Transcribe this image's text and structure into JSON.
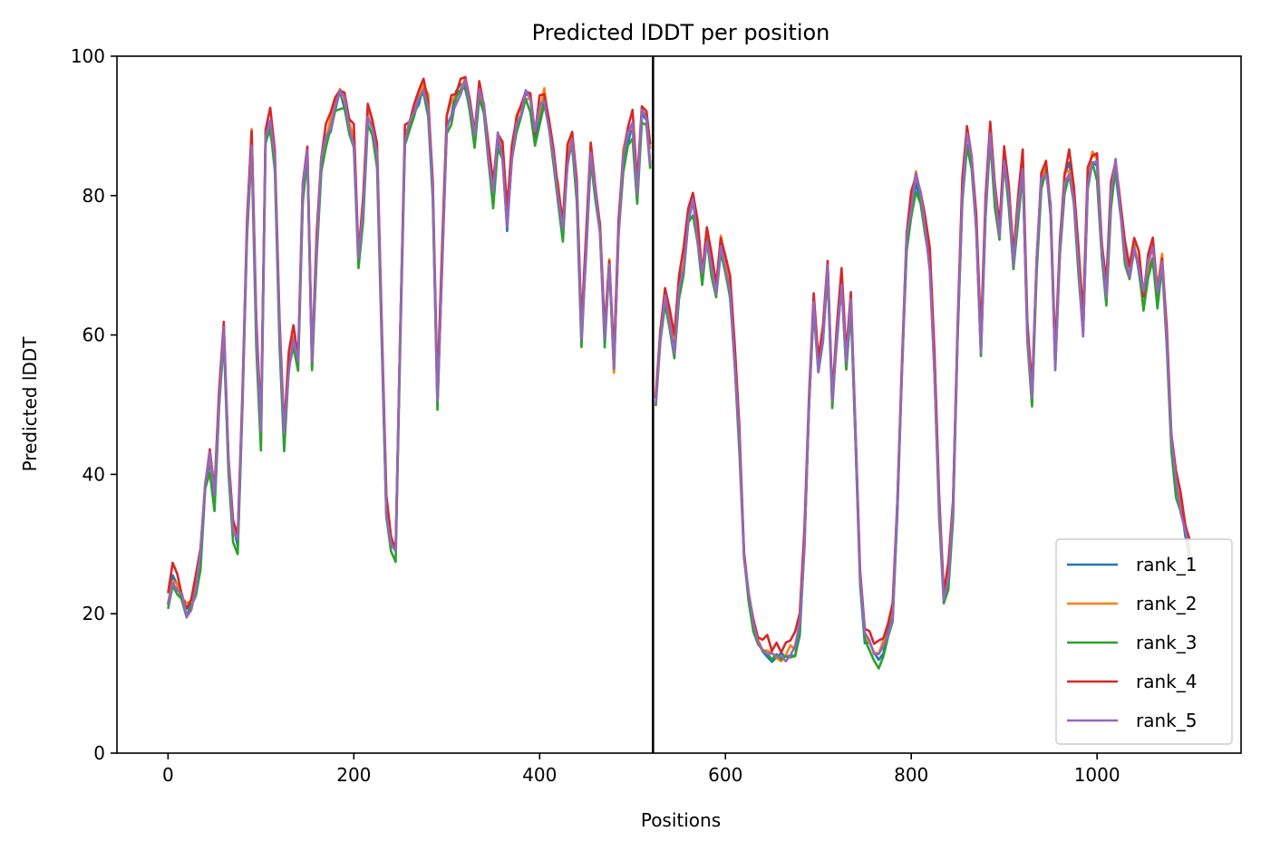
{
  "chart_data": {
    "type": "line",
    "title": "Predicted lDDT per position",
    "xlabel": "Positions",
    "ylabel": "Predicted lDDT",
    "xlim": [
      -55,
      1155
    ],
    "ylim": [
      0,
      100
    ],
    "xticks": [
      0,
      200,
      400,
      600,
      800,
      1000
    ],
    "yticks": [
      0,
      20,
      40,
      60,
      80,
      100
    ],
    "grid": false,
    "legend_position": "lower-right",
    "vline": 522,
    "vline_color": "#000000",
    "series": [
      {
        "name": "rank_1",
        "color": "#1f77b4",
        "offset": 0
      },
      {
        "name": "rank_2",
        "color": "#ff7f0e",
        "offset": 0.6
      },
      {
        "name": "rank_3",
        "color": "#2ca02c",
        "offset": -0.8
      },
      {
        "name": "rank_4",
        "color": "#d62728",
        "offset": 1.6
      },
      {
        "name": "rank_5",
        "color": "#9467bd",
        "offset": 0.2
      }
    ],
    "profile": [
      [
        0,
        22
      ],
      [
        5,
        25
      ],
      [
        10,
        24
      ],
      [
        15,
        22
      ],
      [
        20,
        20
      ],
      [
        25,
        21
      ],
      [
        30,
        23
      ],
      [
        35,
        28
      ],
      [
        40,
        38
      ],
      [
        45,
        42
      ],
      [
        50,
        36
      ],
      [
        55,
        50
      ],
      [
        60,
        60
      ],
      [
        65,
        42
      ],
      [
        70,
        32
      ],
      [
        75,
        30
      ],
      [
        80,
        50
      ],
      [
        85,
        75
      ],
      [
        90,
        88
      ],
      [
        95,
        60
      ],
      [
        100,
        45
      ],
      [
        105,
        88
      ],
      [
        110,
        90
      ],
      [
        115,
        85
      ],
      [
        120,
        60
      ],
      [
        125,
        45
      ],
      [
        130,
        55
      ],
      [
        135,
        60
      ],
      [
        140,
        55
      ],
      [
        145,
        80
      ],
      [
        150,
        86
      ],
      [
        155,
        55
      ],
      [
        160,
        72
      ],
      [
        165,
        85
      ],
      [
        170,
        88
      ],
      [
        175,
        90
      ],
      [
        180,
        92
      ],
      [
        185,
        94
      ],
      [
        190,
        93
      ],
      [
        195,
        90
      ],
      [
        200,
        88
      ],
      [
        205,
        70
      ],
      [
        210,
        78
      ],
      [
        215,
        92
      ],
      [
        220,
        90
      ],
      [
        225,
        85
      ],
      [
        230,
        60
      ],
      [
        235,
        35
      ],
      [
        240,
        30
      ],
      [
        245,
        28
      ],
      [
        250,
        60
      ],
      [
        255,
        88
      ],
      [
        260,
        90
      ],
      [
        265,
        92
      ],
      [
        270,
        94
      ],
      [
        275,
        95
      ],
      [
        280,
        93
      ],
      [
        285,
        80
      ],
      [
        290,
        50
      ],
      [
        295,
        70
      ],
      [
        300,
        90
      ],
      [
        305,
        92
      ],
      [
        310,
        94
      ],
      [
        315,
        95
      ],
      [
        320,
        96
      ],
      [
        325,
        92
      ],
      [
        330,
        88
      ],
      [
        335,
        94
      ],
      [
        340,
        92
      ],
      [
        345,
        85
      ],
      [
        350,
        80
      ],
      [
        355,
        88
      ],
      [
        360,
        86
      ],
      [
        365,
        76
      ],
      [
        370,
        85
      ],
      [
        375,
        90
      ],
      [
        380,
        92
      ],
      [
        385,
        94
      ],
      [
        390,
        93
      ],
      [
        395,
        88
      ],
      [
        400,
        92
      ],
      [
        405,
        94
      ],
      [
        410,
        90
      ],
      [
        415,
        85
      ],
      [
        420,
        80
      ],
      [
        425,
        74
      ],
      [
        430,
        85
      ],
      [
        435,
        88
      ],
      [
        440,
        80
      ],
      [
        445,
        60
      ],
      [
        450,
        72
      ],
      [
        455,
        86
      ],
      [
        460,
        80
      ],
      [
        465,
        75
      ],
      [
        470,
        60
      ],
      [
        475,
        70
      ],
      [
        480,
        55
      ],
      [
        485,
        75
      ],
      [
        490,
        85
      ],
      [
        495,
        88
      ],
      [
        500,
        90
      ],
      [
        505,
        80
      ],
      [
        510,
        92
      ],
      [
        515,
        90
      ],
      [
        519,
        85
      ],
      [
        525,
        50
      ],
      [
        530,
        60
      ],
      [
        535,
        65
      ],
      [
        540,
        62
      ],
      [
        545,
        58
      ],
      [
        550,
        66
      ],
      [
        555,
        70
      ],
      [
        560,
        76
      ],
      [
        565,
        79
      ],
      [
        570,
        74
      ],
      [
        575,
        68
      ],
      [
        580,
        74
      ],
      [
        585,
        70
      ],
      [
        590,
        66
      ],
      [
        595,
        73
      ],
      [
        600,
        70
      ],
      [
        605,
        66
      ],
      [
        610,
        56
      ],
      [
        615,
        45
      ],
      [
        620,
        28
      ],
      [
        625,
        22
      ],
      [
        630,
        18
      ],
      [
        635,
        16
      ],
      [
        640,
        15
      ],
      [
        645,
        14.5
      ],
      [
        650,
        14
      ],
      [
        655,
        14
      ],
      [
        660,
        13.5
      ],
      [
        665,
        14
      ],
      [
        670,
        14.5
      ],
      [
        675,
        15
      ],
      [
        680,
        18
      ],
      [
        685,
        30
      ],
      [
        690,
        50
      ],
      [
        695,
        64
      ],
      [
        700,
        55
      ],
      [
        705,
        60
      ],
      [
        710,
        70
      ],
      [
        715,
        50
      ],
      [
        720,
        60
      ],
      [
        725,
        68
      ],
      [
        730,
        55
      ],
      [
        735,
        64
      ],
      [
        740,
        45
      ],
      [
        745,
        25
      ],
      [
        750,
        16
      ],
      [
        755,
        15
      ],
      [
        760,
        14.5
      ],
      [
        765,
        14
      ],
      [
        770,
        15
      ],
      [
        775,
        17
      ],
      [
        780,
        20
      ],
      [
        785,
        35
      ],
      [
        790,
        55
      ],
      [
        795,
        73
      ],
      [
        800,
        78
      ],
      [
        805,
        82
      ],
      [
        810,
        80
      ],
      [
        815,
        75
      ],
      [
        820,
        70
      ],
      [
        825,
        55
      ],
      [
        830,
        35
      ],
      [
        835,
        22
      ],
      [
        840,
        25
      ],
      [
        845,
        35
      ],
      [
        850,
        60
      ],
      [
        855,
        80
      ],
      [
        860,
        88
      ],
      [
        865,
        85
      ],
      [
        870,
        75
      ],
      [
        875,
        58
      ],
      [
        880,
        78
      ],
      [
        885,
        88
      ],
      [
        890,
        80
      ],
      [
        895,
        75
      ],
      [
        900,
        85
      ],
      [
        905,
        80
      ],
      [
        910,
        70
      ],
      [
        915,
        78
      ],
      [
        920,
        84
      ],
      [
        925,
        60
      ],
      [
        930,
        50
      ],
      [
        935,
        70
      ],
      [
        940,
        82
      ],
      [
        945,
        84
      ],
      [
        950,
        78
      ],
      [
        955,
        55
      ],
      [
        960,
        72
      ],
      [
        965,
        82
      ],
      [
        970,
        84
      ],
      [
        975,
        80
      ],
      [
        980,
        70
      ],
      [
        985,
        60
      ],
      [
        990,
        82
      ],
      [
        995,
        85
      ],
      [
        1000,
        84
      ],
      [
        1005,
        72
      ],
      [
        1010,
        65
      ],
      [
        1015,
        80
      ],
      [
        1020,
        84
      ],
      [
        1025,
        78
      ],
      [
        1030,
        72
      ],
      [
        1035,
        68
      ],
      [
        1040,
        72
      ],
      [
        1045,
        70
      ],
      [
        1050,
        65
      ],
      [
        1055,
        70
      ],
      [
        1060,
        72
      ],
      [
        1065,
        65
      ],
      [
        1070,
        70
      ],
      [
        1075,
        60
      ],
      [
        1080,
        45
      ],
      [
        1085,
        38
      ],
      [
        1090,
        35
      ],
      [
        1095,
        32
      ],
      [
        1100,
        28
      ]
    ]
  }
}
